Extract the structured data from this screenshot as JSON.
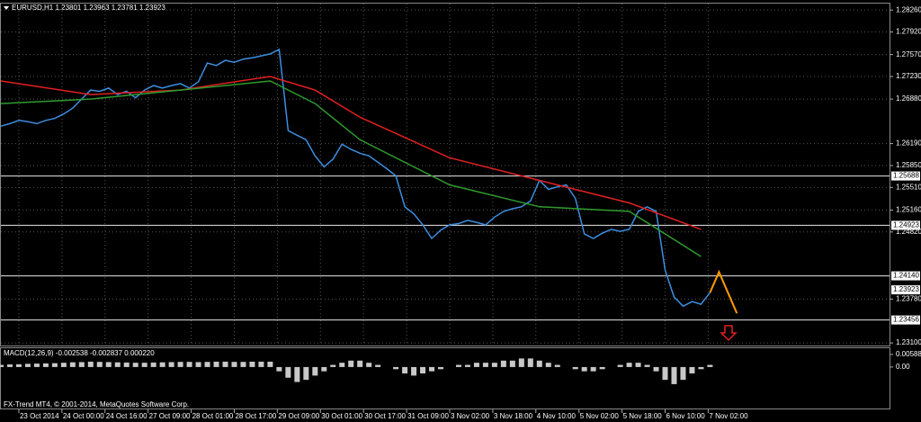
{
  "chart_data": [
    {
      "type": "line",
      "title": "EURUSD,H1 1.23801 1.23963 1.23781 1.23923",
      "xlim": [
        0,
        99
      ],
      "xticks": [
        {
          "value": 2,
          "label": "23 Oct 2014"
        },
        {
          "value": 6.8,
          "label": "24 Oct 00:00"
        },
        {
          "value": 11.6,
          "label": "24 Oct 16:00"
        },
        {
          "value": 16.4,
          "label": "27 Oct 09:00"
        },
        {
          "value": 21.2,
          "label": "28 Oct 01:00"
        },
        {
          "value": 26,
          "label": "28 Oct 17:00"
        },
        {
          "value": 30.8,
          "label": "29 Oct 09:00"
        },
        {
          "value": 35.6,
          "label": "30 Oct 01:00"
        },
        {
          "value": 40.4,
          "label": "30 Oct 17:00"
        },
        {
          "value": 45.2,
          "label": "31 Oct 09:00"
        },
        {
          "value": 50,
          "label": "3 Nov 02:00"
        },
        {
          "value": 54.8,
          "label": "3 Nov 18:00"
        },
        {
          "value": 59.6,
          "label": "4 Nov 10:00"
        },
        {
          "value": 64.4,
          "label": "5 Nov 02:00"
        },
        {
          "value": 69.2,
          "label": "5 Nov 18:00"
        },
        {
          "value": 74,
          "label": "6 Nov 10:00"
        },
        {
          "value": 78.8,
          "label": "7 Nov 02:00"
        }
      ],
      "ylim": [
        1.2306,
        1.2836
      ],
      "yticks": [
        {
          "value": 1.2826,
          "label": "1.28260"
        },
        {
          "value": 1.2792,
          "label": "1.27920"
        },
        {
          "value": 1.2757,
          "label": "1.27570"
        },
        {
          "value": 1.2723,
          "label": "1.27230"
        },
        {
          "value": 1.2688,
          "label": "1.26880"
        },
        {
          "value": 1.2619,
          "label": "1.26190"
        },
        {
          "value": 1.2585,
          "label": "1.25850"
        },
        {
          "value": 1.2551,
          "label": "1.25510"
        },
        {
          "value": 1.2516,
          "label": "1.25160"
        },
        {
          "value": 1.2482,
          "label": "1.24820"
        },
        {
          "value": 1.2378,
          "label": "1.23780"
        },
        {
          "value": 1.231,
          "label": "1.23100"
        }
      ],
      "grid": true,
      "levels": [
        1.25688,
        1.24923,
        1.2414,
        1.23456
      ],
      "level_labels": [
        "1.25688",
        "1.24923",
        "1.24140",
        "1.23456"
      ],
      "bid": 1.23923,
      "series": [
        {
          "color": "#3d8ee0",
          "x": [
            0,
            1,
            2,
            3,
            4,
            5,
            6,
            7,
            8,
            9,
            10,
            11,
            12,
            13,
            14,
            15,
            16,
            17,
            18,
            19,
            20,
            21,
            22,
            23,
            24,
            25,
            26,
            27,
            28,
            29,
            30,
            31,
            32,
            33,
            34,
            35,
            36,
            37,
            38,
            39,
            40,
            41,
            42,
            43,
            44,
            45,
            46,
            47,
            48,
            49,
            50,
            51,
            52,
            53,
            54,
            55,
            56,
            57,
            58,
            59,
            60,
            61,
            62,
            63,
            64,
            65,
            66,
            67,
            68,
            69,
            70,
            71,
            72,
            73,
            74,
            75,
            76,
            77,
            78,
            79
          ],
          "values": [
            1.2646,
            1.265,
            1.2655,
            1.2653,
            1.265,
            1.2655,
            1.2658,
            1.2665,
            1.2674,
            1.2688,
            1.2702,
            1.27,
            1.2705,
            1.2695,
            1.27,
            1.269,
            1.2702,
            1.2709,
            1.2705,
            1.2709,
            1.2712,
            1.2705,
            1.2715,
            1.2744,
            1.274,
            1.2748,
            1.2745,
            1.275,
            1.2752,
            1.2755,
            1.2758,
            1.2765,
            1.2639,
            1.2632,
            1.2625,
            1.26,
            1.2583,
            1.2595,
            1.2618,
            1.261,
            1.2604,
            1.26,
            1.259,
            1.258,
            1.2569,
            1.2521,
            1.251,
            1.2493,
            1.2472,
            1.2485,
            1.2493,
            1.2495,
            1.25,
            1.2497,
            1.2493,
            1.2505,
            1.2514,
            1.2518,
            1.2521,
            1.253,
            1.2562,
            1.2548,
            1.2552,
            1.2555,
            1.2534,
            1.2479,
            1.2472,
            1.248,
            1.2486,
            1.2483,
            1.2486,
            1.2514,
            1.2521,
            1.2514,
            1.2423,
            1.2381,
            1.2367,
            1.2374,
            1.237,
            1.2388
          ]
        },
        {
          "color": "#e02020",
          "x": [
            0,
            10,
            20,
            30,
            35,
            40,
            50,
            60,
            70,
            78
          ],
          "values": [
            1.2716,
            1.2695,
            1.2702,
            1.2723,
            1.2702,
            1.266,
            1.2597,
            1.2562,
            1.2527,
            1.2486
          ]
        },
        {
          "color": "#2e9b2e",
          "x": [
            0,
            10,
            20,
            30,
            35,
            40,
            50,
            60,
            70,
            78
          ],
          "values": [
            1.2681,
            1.2688,
            1.2702,
            1.2716,
            1.2681,
            1.2625,
            1.2555,
            1.2521,
            1.2514,
            1.2444
          ]
        },
        {
          "color": "#ff9900",
          "x": [
            79,
            80,
            82
          ],
          "values": [
            1.2388,
            1.242,
            1.2356
          ]
        }
      ]
    },
    {
      "type": "bar",
      "title": "MACD(12,26,9) -0.002538 -0.002837 0.000220",
      "ylim": [
        -0.0194,
        0.0088
      ],
      "yticks": [
        {
          "value": 0.005888,
          "label": "0.005888"
        },
        {
          "value": 0,
          "label": "0.00"
        }
      ],
      "color": "#c8c8c8",
      "values": [
        0.001,
        0.0012,
        0.0013,
        0.0015,
        0.0016,
        0.0017,
        0.0018,
        0.002,
        0.0022,
        0.0023,
        0.0025,
        0.0024,
        0.0023,
        0.0022,
        0.0021,
        0.002,
        0.002,
        0.0021,
        0.0022,
        0.0023,
        0.0024,
        0.0024,
        0.0023,
        0.0024,
        0.0025,
        0.0025,
        0.0024,
        0.0024,
        0.0025,
        0.0025,
        0.0025,
        -0.002,
        -0.005,
        -0.007,
        -0.006,
        -0.004,
        -0.002,
        0.001,
        0.002,
        0.003,
        0.003,
        0.002,
        0.001,
        0,
        -0.001,
        -0.003,
        -0.004,
        -0.003,
        -0.002,
        -0.001,
        0,
        0.001,
        0.001,
        0.002,
        0.002,
        0.002,
        0.003,
        0.003,
        0.004,
        0.004,
        0.003,
        0.002,
        0.001,
        0,
        -0.001,
        -0.002,
        -0.002,
        -0.001,
        0,
        0.001,
        0.002,
        0.002,
        0.001,
        -0.002,
        -0.006,
        -0.008,
        -0.006,
        -0.003,
        -0.001,
        0.001
      ]
    }
  ],
  "footer": "FX-Trend MT4, © 2001-2014, MetaQuotes Software Corp."
}
